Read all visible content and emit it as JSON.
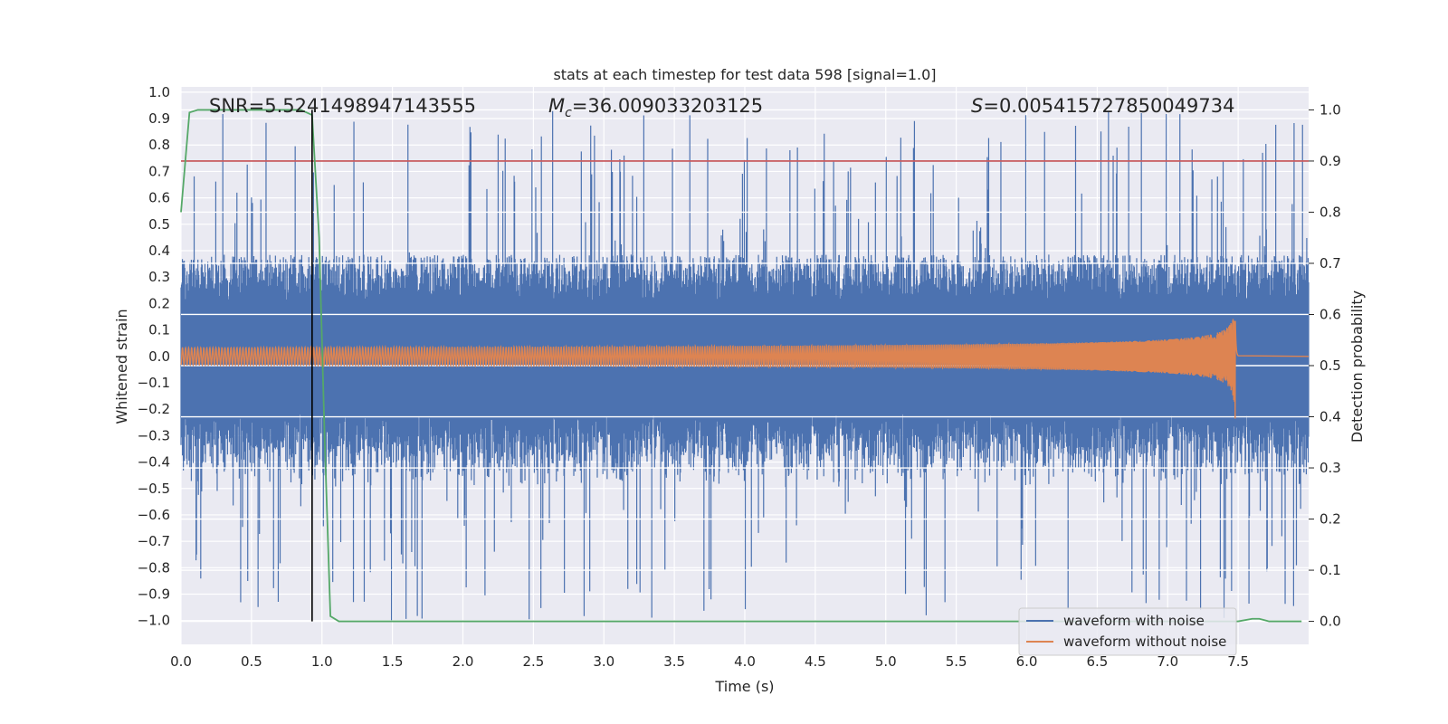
{
  "chart_data": {
    "type": "line",
    "title": "stats at each timestep for test data 598 [signal=1.0]",
    "xlabel": "Time (s)",
    "ylabel": "Whitened strain",
    "y2label": "Detection probability",
    "xlim": [
      0.0,
      8.0
    ],
    "ylim": [
      -1.09,
      1.02
    ],
    "y2lim": [
      -0.045,
      1.045
    ],
    "x_ticks": [
      "0.0",
      "0.5",
      "1.0",
      "1.5",
      "2.0",
      "2.5",
      "3.0",
      "3.5",
      "4.0",
      "4.5",
      "5.0",
      "5.5",
      "6.0",
      "6.5",
      "7.0",
      "7.5"
    ],
    "y_ticks": [
      "1.0",
      "0.9",
      "0.8",
      "0.7",
      "0.6",
      "0.5",
      "0.4",
      "0.3",
      "0.2",
      "0.1",
      "0.0",
      "−0.1",
      "−0.2",
      "−0.3",
      "−0.4",
      "−0.5",
      "−0.6",
      "−0.7",
      "−0.8",
      "−0.9",
      "−1.0"
    ],
    "y2_ticks": [
      "1.0",
      "0.9",
      "0.8",
      "0.7",
      "0.6",
      "0.5",
      "0.4",
      "0.3",
      "0.2",
      "0.1",
      "0.0"
    ],
    "grid": true,
    "annotations": {
      "snr": "SNR=5.5241498947143555",
      "mc_symbol": "M",
      "mc_sub": "c",
      "mc_value": "=36.009033203125",
      "s_symbol": "S",
      "s_value": "=0.005415727850049734"
    },
    "threshold_y2": 0.9,
    "vertical_marker_x": 0.93,
    "noise_series": {
      "name": "waveform with noise",
      "color": "#4c72b0",
      "typical_amplitude": 0.35,
      "peak_positive": 0.93,
      "peak_negative": -1.0
    },
    "signal_series": {
      "name": "waveform without noise",
      "color": "#dd8452",
      "merger_time": 7.48,
      "peak_amplitude": 0.32
    },
    "probability_series": {
      "name": "detection probability",
      "color": "#55a868",
      "x": [
        0.0,
        0.06,
        0.12,
        0.3,
        0.5,
        0.7,
        0.85,
        0.93,
        0.98,
        1.02,
        1.06,
        1.12,
        1.2,
        7.5,
        7.6,
        7.65,
        7.72,
        7.8,
        7.95
      ],
      "y": [
        0.8,
        0.995,
        1.0,
        1.0,
        1.0,
        1.0,
        1.0,
        0.99,
        0.75,
        0.35,
        0.01,
        0.0,
        0.0,
        0.0,
        0.005,
        0.005,
        0.0,
        0.0,
        0.0
      ]
    },
    "legend": {
      "placement": "lower-right",
      "entries": [
        "waveform with noise",
        "waveform without noise"
      ]
    }
  }
}
